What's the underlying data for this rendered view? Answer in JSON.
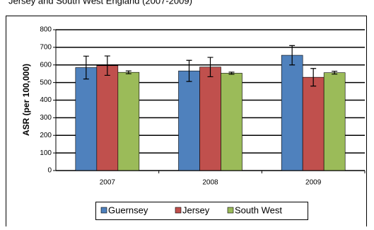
{
  "chart_data": {
    "type": "bar",
    "title": "Jersey and South West England (2007-2009)",
    "y_label": "ASR (per 100,000)",
    "categories": [
      "2007",
      "2008",
      "2009"
    ],
    "series": [
      {
        "name": "Guernsey",
        "color": "#4f81bd",
        "values": [
          585,
          566,
          655
        ],
        "errors": [
          65,
          60,
          55
        ]
      },
      {
        "name": "Jersey",
        "color": "#c0504d",
        "values": [
          596,
          588,
          530
        ],
        "errors": [
          55,
          55,
          50
        ]
      },
      {
        "name": "South West",
        "color": "#9bbb59",
        "values": [
          558,
          553,
          556
        ],
        "errors": [
          8,
          6,
          8
        ]
      }
    ],
    "ylim": [
      0,
      800
    ],
    "yticks": [
      0,
      100,
      200,
      300,
      400,
      500,
      600,
      700,
      800
    ],
    "grid": true
  }
}
